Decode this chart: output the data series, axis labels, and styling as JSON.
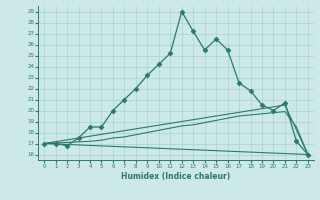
{
  "xlabel": "Humidex (Indice chaleur)",
  "background_color": "#cce8e8",
  "line_color": "#2a7a6a",
  "xlim": [
    -0.5,
    23.5
  ],
  "ylim": [
    15.5,
    29.5
  ],
  "yticks": [
    16,
    17,
    18,
    19,
    20,
    21,
    22,
    23,
    24,
    25,
    26,
    27,
    28,
    29
  ],
  "xticks": [
    0,
    1,
    2,
    3,
    4,
    5,
    6,
    7,
    8,
    9,
    10,
    11,
    12,
    13,
    14,
    15,
    16,
    17,
    18,
    19,
    20,
    21,
    22,
    23
  ],
  "line1_x": [
    0,
    1,
    2,
    3,
    4,
    5,
    6,
    7,
    8,
    9,
    10,
    11,
    12,
    13,
    14,
    15,
    16,
    17,
    18,
    19,
    20,
    21,
    22,
    23
  ],
  "line1_y": [
    17.0,
    17.0,
    16.8,
    17.5,
    18.5,
    18.5,
    20.0,
    21.0,
    22.0,
    23.2,
    24.2,
    25.2,
    29.0,
    27.2,
    25.5,
    26.5,
    25.5,
    22.5,
    21.8,
    20.5,
    20.0,
    20.7,
    17.2,
    16.0
  ],
  "line2_x": [
    0,
    23
  ],
  "line2_y": [
    17.0,
    16.0
  ],
  "line3_x": [
    0,
    21,
    23
  ],
  "line3_y": [
    17.0,
    20.5,
    16.0
  ],
  "line4_x": [
    0,
    4,
    5,
    6,
    7,
    8,
    9,
    10,
    11,
    12,
    13,
    14,
    15,
    16,
    17,
    18,
    19,
    20,
    21,
    22,
    23
  ],
  "line4_y": [
    17.0,
    17.2,
    17.3,
    17.5,
    17.6,
    17.8,
    18.0,
    18.2,
    18.4,
    18.6,
    18.7,
    18.9,
    19.1,
    19.3,
    19.5,
    19.6,
    19.7,
    19.8,
    19.9,
    18.5,
    16.0
  ]
}
